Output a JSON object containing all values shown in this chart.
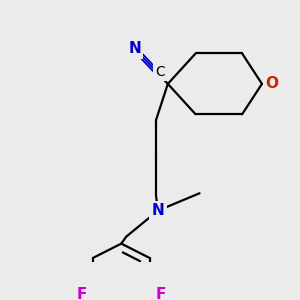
{
  "background_color": "#ebebeb",
  "bond_color": "#000000",
  "atom_colors": {
    "N": "#0000cc",
    "O": "#cc2200",
    "F": "#cc00cc",
    "C_label": "#000000",
    "triple_bond": "#0000cc"
  },
  "figsize": [
    3.0,
    3.0
  ],
  "dpi": 100
}
